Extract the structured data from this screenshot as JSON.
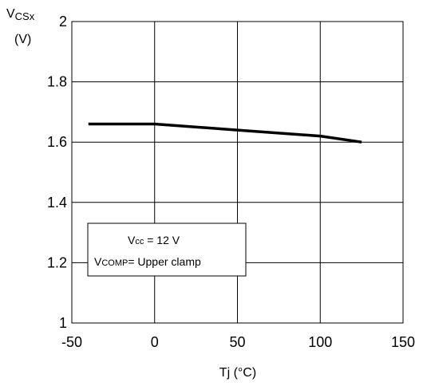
{
  "chart_data": {
    "type": "line",
    "x": [
      -40,
      0,
      50,
      100,
      125
    ],
    "series": [
      {
        "values": [
          1.66,
          1.66,
          1.64,
          1.62,
          1.6
        ],
        "color": "#000000"
      }
    ],
    "xlabel": "Tj  (°C)",
    "ylabel_main": "V",
    "ylabel_sub": "CSx",
    "ylabel_unit": "(V)",
    "xlim": [
      -50,
      150
    ],
    "ylim": [
      1,
      2
    ],
    "xticks": [
      -50,
      0,
      50,
      100,
      150
    ],
    "yticks": [
      1,
      1.2,
      1.4,
      1.6,
      1.8,
      2
    ],
    "ytick_labels": [
      "1",
      "1.2",
      "1.4",
      "1.6",
      "1.8",
      "2"
    ],
    "xtick_labels": [
      "-50",
      "0",
      "50",
      "100",
      "150"
    ],
    "grid": true,
    "annotation": {
      "line1_main": "V",
      "line1_sub": "cc",
      "line1_rest": " = 12 V",
      "line2_main": "V",
      "line2_sub": "COMP",
      "line2_rest": "= Upper clamp"
    }
  }
}
